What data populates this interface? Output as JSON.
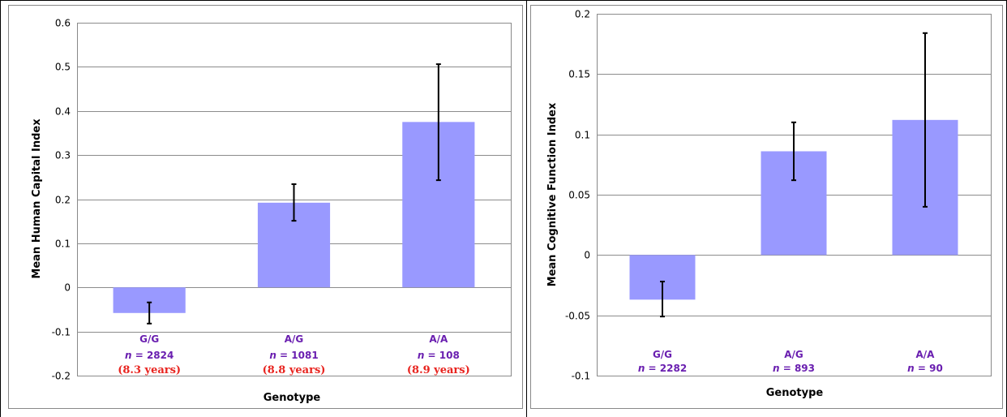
{
  "chart_data": [
    {
      "type": "bar",
      "categories": [
        "G/G",
        "A/G",
        "A/A"
      ],
      "values": [
        -0.058,
        0.192,
        0.375
      ],
      "error_low": [
        -0.082,
        0.151,
        0.243
      ],
      "error_high": [
        -0.034,
        0.234,
        0.506
      ],
      "n_labels": [
        "= 2824",
        "= 1081",
        "= 108"
      ],
      "extra_labels": [
        "(8.3 years)",
        "(8.8 years)",
        "(8.9 years)"
      ],
      "ylabel": "Mean Human Capital Index",
      "xlabel": "Genotype",
      "ylim": [
        -0.2,
        0.6
      ],
      "yticks": [
        -0.2,
        -0.1,
        0,
        0.1,
        0.2,
        0.3,
        0.4,
        0.5,
        0.6
      ],
      "ytick_labels": [
        "-0.2",
        "-0.1",
        "0",
        "0.1",
        "0.2",
        "0.3",
        "0.4",
        "0.5",
        "0.6"
      ],
      "grid": true,
      "bar_color": "#9999ff",
      "label_color": "#6a1fb0",
      "extra_label_color": "#e8241f"
    },
    {
      "type": "bar",
      "categories": [
        "G/G",
        "A/G",
        "A/A"
      ],
      "values": [
        -0.037,
        0.086,
        0.112
      ],
      "error_low": [
        -0.051,
        0.062,
        0.04
      ],
      "error_high": [
        -0.022,
        0.11,
        0.184
      ],
      "n_labels": [
        "= 2282",
        "= 893",
        "= 90"
      ],
      "ylabel": "Mean Cognitive Function Index",
      "xlabel": "Genotype",
      "ylim": [
        -0.1,
        0.2
      ],
      "yticks": [
        -0.1,
        -0.05,
        0,
        0.05,
        0.1,
        0.15,
        0.2
      ],
      "ytick_labels": [
        "-0.1",
        "-0.05",
        "0",
        "0.05",
        "0.1",
        "0.15",
        "0.2"
      ],
      "grid": true,
      "bar_color": "#9999ff",
      "label_color": "#6a1fb0"
    }
  ],
  "n_symbol": "n"
}
